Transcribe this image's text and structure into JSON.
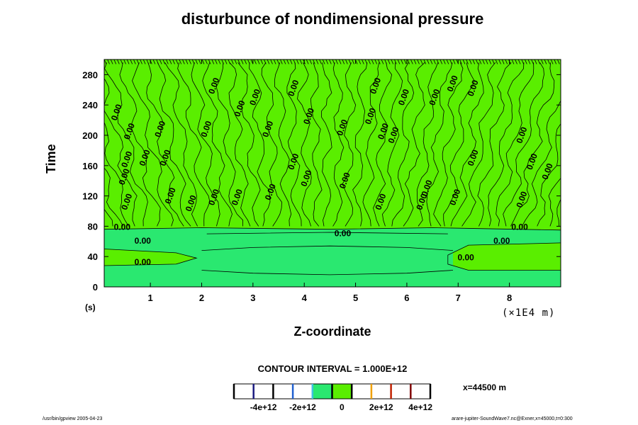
{
  "chart_data": {
    "type": "contour",
    "title": "disturbunce of nondimensional pressure",
    "xlabel": "Z-coordinate",
    "ylabel": "Time",
    "x_unit_left": "(s)",
    "x_unit_right": "(×1E4 m)",
    "xlim": [
      0.1,
      9.0
    ],
    "ylim": [
      0,
      300
    ],
    "x_ticks": [
      "1",
      "2",
      "3",
      "4",
      "5",
      "6",
      "7",
      "8"
    ],
    "y_ticks": [
      "0",
      "40",
      "80",
      "120",
      "160",
      "200",
      "240",
      "280"
    ],
    "contour_interval_text": "CONTOUR INTERVAL = 1.000E+12",
    "contour_label": "0.00",
    "contour_labels": [
      {
        "x": 0.45,
        "y": 78,
        "text": "0.00"
      },
      {
        "x": 0.85,
        "y": 60,
        "text": "0.00"
      },
      {
        "x": 0.85,
        "y": 32,
        "text": "0.00"
      },
      {
        "x": 4.75,
        "y": 70,
        "text": "0.00"
      },
      {
        "x": 8.2,
        "y": 78,
        "text": "0.00"
      },
      {
        "x": 7.85,
        "y": 60,
        "text": "0.00"
      },
      {
        "x": 7.15,
        "y": 38,
        "text": "0.00"
      },
      {
        "x": 0.35,
        "y": 230,
        "text": "0.00"
      },
      {
        "x": 0.6,
        "y": 205,
        "text": "0.00"
      },
      {
        "x": 0.55,
        "y": 168,
        "text": "0.00"
      },
      {
        "x": 0.5,
        "y": 145,
        "text": "0.00"
      },
      {
        "x": 0.9,
        "y": 170,
        "text": "0.00"
      },
      {
        "x": 0.55,
        "y": 112,
        "text": "0.00"
      },
      {
        "x": 1.2,
        "y": 208,
        "text": "0.00"
      },
      {
        "x": 1.3,
        "y": 170,
        "text": "0.00"
      },
      {
        "x": 1.4,
        "y": 120,
        "text": "0.00"
      },
      {
        "x": 1.8,
        "y": 110,
        "text": "0.00"
      },
      {
        "x": 2.1,
        "y": 208,
        "text": "0.00"
      },
      {
        "x": 2.25,
        "y": 265,
        "text": "0.00"
      },
      {
        "x": 2.25,
        "y": 118,
        "text": "0.00"
      },
      {
        "x": 2.75,
        "y": 235,
        "text": "0.00"
      },
      {
        "x": 3.05,
        "y": 250,
        "text": "0.00"
      },
      {
        "x": 2.7,
        "y": 118,
        "text": "0.00"
      },
      {
        "x": 3.3,
        "y": 208,
        "text": "0.00"
      },
      {
        "x": 3.35,
        "y": 125,
        "text": "0.00"
      },
      {
        "x": 3.8,
        "y": 262,
        "text": "0.00"
      },
      {
        "x": 4.1,
        "y": 225,
        "text": "0.00"
      },
      {
        "x": 3.8,
        "y": 165,
        "text": "0.00"
      },
      {
        "x": 4.05,
        "y": 143,
        "text": "0.00"
      },
      {
        "x": 4.75,
        "y": 210,
        "text": "0.00"
      },
      {
        "x": 4.8,
        "y": 140,
        "text": "0.00"
      },
      {
        "x": 5.3,
        "y": 225,
        "text": "0.00"
      },
      {
        "x": 5.4,
        "y": 265,
        "text": "0.00"
      },
      {
        "x": 5.55,
        "y": 205,
        "text": "0.00"
      },
      {
        "x": 5.75,
        "y": 200,
        "text": "0.00"
      },
      {
        "x": 5.5,
        "y": 112,
        "text": "0.00"
      },
      {
        "x": 5.95,
        "y": 250,
        "text": "0.00"
      },
      {
        "x": 6.55,
        "y": 250,
        "text": "0.00"
      },
      {
        "x": 6.9,
        "y": 268,
        "text": "0.00"
      },
      {
        "x": 6.4,
        "y": 130,
        "text": "0.00"
      },
      {
        "x": 6.3,
        "y": 112,
        "text": "0.00"
      },
      {
        "x": 6.95,
        "y": 118,
        "text": "0.00"
      },
      {
        "x": 7.3,
        "y": 262,
        "text": "0.00"
      },
      {
        "x": 7.3,
        "y": 170,
        "text": "0.00"
      },
      {
        "x": 8.25,
        "y": 200,
        "text": "0.00"
      },
      {
        "x": 8.45,
        "y": 165,
        "text": "0.00"
      },
      {
        "x": 8.75,
        "y": 152,
        "text": "0.00"
      },
      {
        "x": 8.25,
        "y": 115,
        "text": "0.00"
      }
    ],
    "colorbar": {
      "colors": [
        "#ffffff",
        "#ffffff",
        "#ffffff",
        "#ffffff",
        "#2ae870",
        "#5aee00",
        "#ffffff",
        "#ffffff",
        "#ffffff",
        "#ffffff"
      ],
      "divider_colors": [
        "#000000",
        "#1a1a80",
        "#000000",
        "#2060d0",
        "#40c0e0",
        "#000000",
        "#000000",
        "#f0a000",
        "#c02000",
        "#800000",
        "#000000"
      ],
      "tick_labels": [
        "-4e+12",
        "-2e+12",
        "0",
        "2e+12",
        "4e+12"
      ]
    },
    "fill_colors": {
      "positive": "#5aee00",
      "negative": "#2ae870"
    }
  },
  "annotation": {
    "position": "x=44500 m"
  },
  "footer": {
    "left": "/usr/bin/gpview 2005-04-23",
    "right": "arare-jupiter-SoundWave7.nc@Exner,x=45000,t=0:300"
  }
}
